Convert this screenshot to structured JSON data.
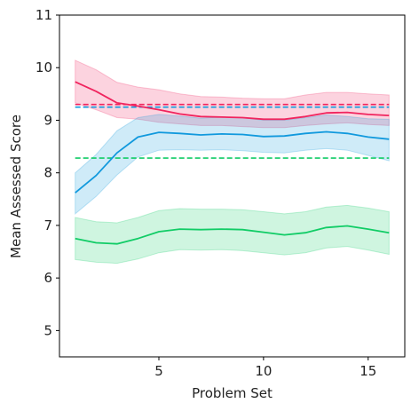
{
  "chart_data": {
    "type": "line",
    "title": "",
    "xlabel": "Problem Set",
    "ylabel": "Mean Assessed Score",
    "xlim": [
      0.25,
      16.75
    ],
    "ylim": [
      4.5,
      11
    ],
    "x_ticks": [
      5,
      10,
      15
    ],
    "y_ticks": [
      5,
      6,
      7,
      8,
      9,
      10,
      11
    ],
    "grid": false,
    "legend": "none",
    "x": [
      1,
      2,
      3,
      4,
      5,
      6,
      7,
      8,
      9,
      10,
      11,
      12,
      13,
      14,
      15,
      16
    ],
    "series": [
      {
        "color": "#f0245e",
        "values": [
          9.73,
          9.55,
          9.33,
          9.27,
          9.2,
          9.12,
          9.07,
          9.06,
          9.05,
          9.02,
          9.02,
          9.07,
          9.14,
          9.15,
          9.11,
          9.09
        ],
        "lower": [
          9.33,
          9.2,
          9.05,
          9.02,
          8.96,
          8.93,
          8.9,
          8.9,
          8.88,
          8.86,
          8.86,
          8.9,
          8.93,
          8.95,
          8.92,
          8.9
        ],
        "upper": [
          10.14,
          9.96,
          9.72,
          9.63,
          9.58,
          9.5,
          9.45,
          9.44,
          9.42,
          9.41,
          9.41,
          9.48,
          9.53,
          9.53,
          9.5,
          9.48
        ]
      },
      {
        "color": "#1199dd",
        "values": [
          7.62,
          7.95,
          8.38,
          8.68,
          8.77,
          8.75,
          8.72,
          8.74,
          8.73,
          8.69,
          8.7,
          8.75,
          8.78,
          8.75,
          8.68,
          8.64
        ],
        "lower": [
          7.22,
          7.55,
          7.96,
          8.3,
          8.43,
          8.44,
          8.43,
          8.44,
          8.42,
          8.39,
          8.38,
          8.43,
          8.46,
          8.43,
          8.33,
          8.23
        ],
        "upper": [
          8.0,
          8.35,
          8.8,
          9.05,
          9.11,
          9.08,
          9.04,
          9.06,
          9.05,
          9.0,
          9.0,
          9.05,
          9.1,
          9.07,
          9.03,
          9.02
        ]
      },
      {
        "color": "#11cc66",
        "values": [
          6.75,
          6.67,
          6.65,
          6.75,
          6.88,
          6.93,
          6.92,
          6.93,
          6.92,
          6.87,
          6.82,
          6.86,
          6.96,
          6.99,
          6.93,
          6.86
        ],
        "lower": [
          6.35,
          6.3,
          6.28,
          6.36,
          6.48,
          6.54,
          6.53,
          6.54,
          6.52,
          6.48,
          6.44,
          6.48,
          6.57,
          6.6,
          6.53,
          6.45
        ],
        "upper": [
          7.15,
          7.07,
          7.05,
          7.15,
          7.28,
          7.32,
          7.31,
          7.31,
          7.3,
          7.26,
          7.22,
          7.26,
          7.35,
          7.38,
          7.33,
          7.26
        ]
      }
    ],
    "reference_lines": [
      {
        "color": "#f0245e",
        "y": 9.3
      },
      {
        "color": "#1199dd",
        "y": 9.25
      },
      {
        "color": "#11cc66",
        "y": 8.28
      }
    ]
  }
}
